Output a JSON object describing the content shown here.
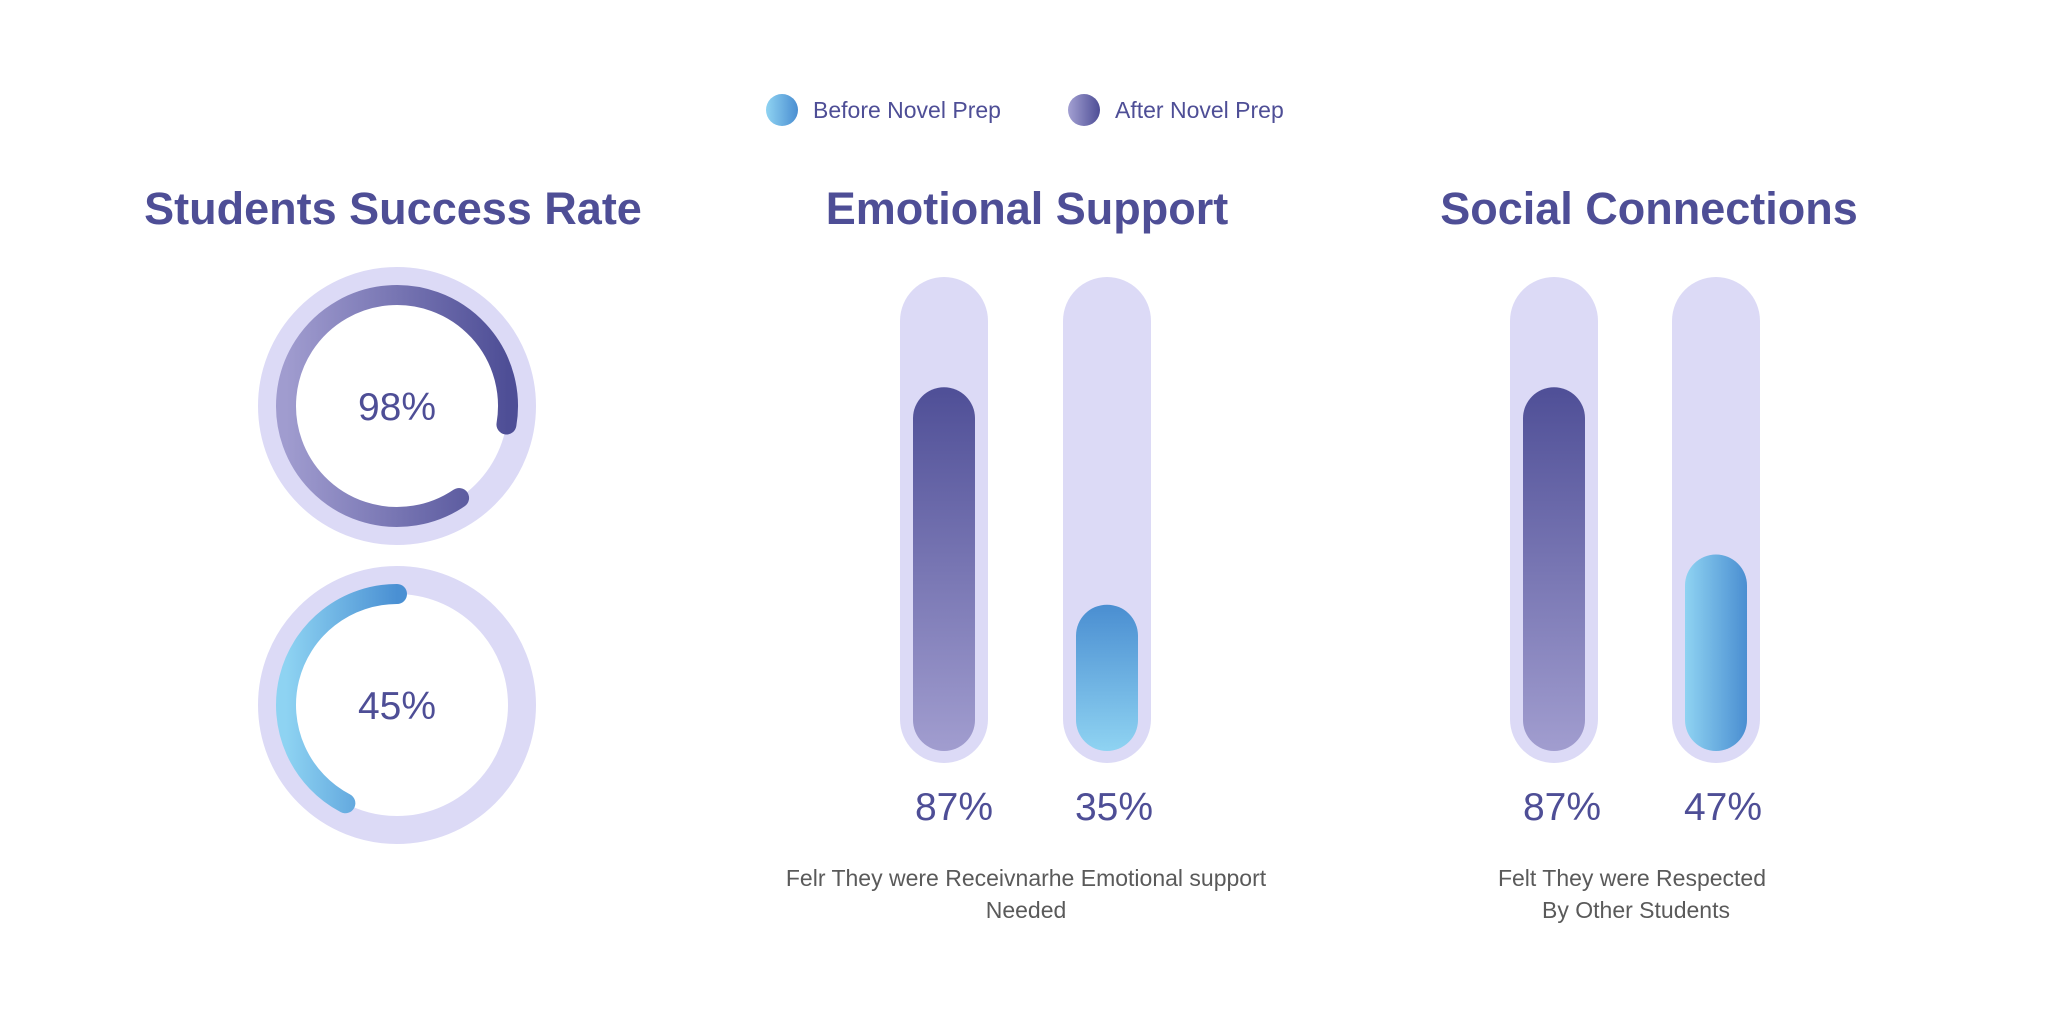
{
  "colors": {
    "title": "#4e4e96",
    "label": "#5a5a5a",
    "track": "#dcdaf6",
    "after_dark": "#4f4f97",
    "after_light": "#9f9bcd",
    "before_dark": "#4a8fd2",
    "before_light": "#8fd2f1"
  },
  "legend": [
    {
      "label": "Before Novel Prep",
      "icon": "before-swatch"
    },
    {
      "label": "After Novel Prep",
      "icon": "after-swatch"
    }
  ],
  "chart_data": [
    {
      "type": "donut",
      "title": "Students Success Rate",
      "series": [
        {
          "name": "After Novel Prep",
          "value": 98,
          "label": "98%"
        },
        {
          "name": "Before Novel Prep",
          "value": 45,
          "label": "45%"
        }
      ],
      "ylim": [
        0,
        100
      ]
    },
    {
      "type": "bar",
      "title": "Emotional Support",
      "categories": [
        "After Novel Prep",
        "Before Novel Prep"
      ],
      "values": [
        87,
        35
      ],
      "labels": [
        "87%",
        "35%"
      ],
      "caption_lines": [
        "Felr They were Receivnarhe Emotional support",
        "Needed"
      ],
      "ylim": [
        0,
        100
      ]
    },
    {
      "type": "bar",
      "title": "Social Connections",
      "categories": [
        "After Novel Prep",
        "Before Novel Prep"
      ],
      "values": [
        87,
        47
      ],
      "labels": [
        "87%",
        "47%"
      ],
      "caption_lines": [
        "Felt They were Respected",
        "By Other Students"
      ],
      "ylim": [
        0,
        100
      ]
    }
  ]
}
